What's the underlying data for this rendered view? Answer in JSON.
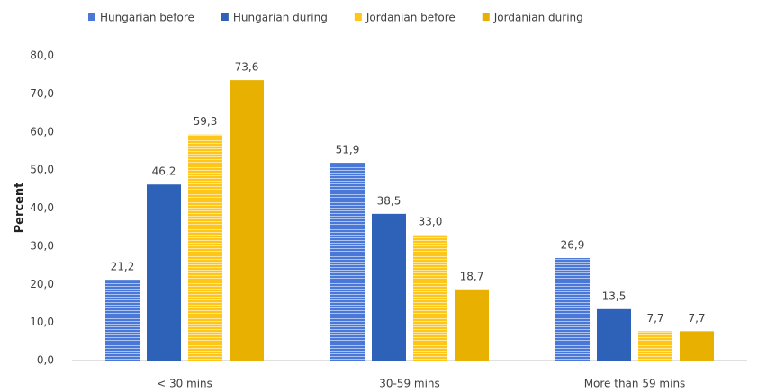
{
  "chart_data": {
    "type": "bar",
    "y_label": "Percent",
    "categories": [
      "< 30  mins",
      "30-59 mins",
      "More than 59 mins"
    ],
    "series": [
      {
        "name": "Hungarian before",
        "color": "#4a78d8",
        "pattern": "horizontal-stripes",
        "values": [
          21.2,
          51.9,
          26.9
        ],
        "value_labels": [
          "21,2",
          "51,9",
          "26,9"
        ]
      },
      {
        "name": "Hungarian during",
        "color": "#2e62b8",
        "values": [
          46.2,
          38.5,
          13.5
        ],
        "value_labels": [
          "46,2",
          "38,5",
          "13,5"
        ]
      },
      {
        "name": "Jordanian before",
        "color": "#ffc61a",
        "pattern": "horizontal-stripes",
        "values": [
          59.3,
          33.0,
          7.7
        ],
        "value_labels": [
          "59,3",
          "33,0",
          "7,7"
        ]
      },
      {
        "name": "Jordanian during",
        "color": "#e8b000",
        "values": [
          73.6,
          18.7,
          7.7
        ],
        "value_labels": [
          "73,6",
          "18,7",
          "7,7"
        ]
      }
    ],
    "ylim": [
      0,
      80
    ],
    "yticks": [
      {
        "value": 0,
        "label": "0,0"
      },
      {
        "value": 10,
        "label": "10,0"
      },
      {
        "value": 20,
        "label": "20,0"
      },
      {
        "value": 30,
        "label": "30,0"
      },
      {
        "value": 40,
        "label": "40,0"
      },
      {
        "value": 50,
        "label": "50,0"
      },
      {
        "value": 60,
        "label": "60,0"
      },
      {
        "value": 70,
        "label": "70,0"
      },
      {
        "value": 80,
        "label": "80,0"
      }
    ],
    "grid": false,
    "legend": "top"
  }
}
